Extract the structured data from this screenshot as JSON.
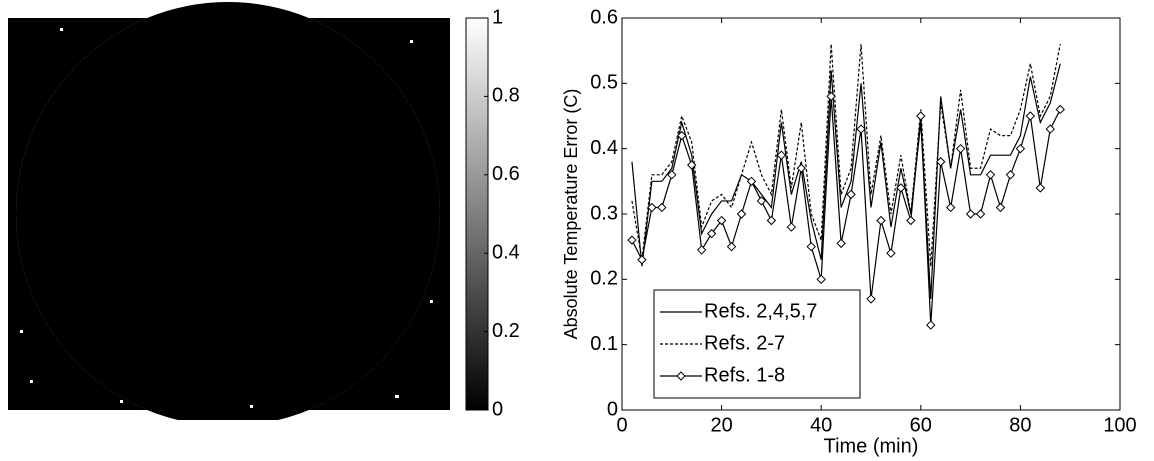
{
  "chart_data": [
    {
      "type": "image",
      "colorbar_lim": [
        0,
        1
      ],
      "colorbar_ticks": [
        0,
        0.2,
        0.4,
        0.6,
        0.8,
        1
      ]
    },
    {
      "type": "line",
      "x_label": "Time (min)",
      "y_label": "Absolute Temperature Error (C)",
      "x": [
        2,
        4,
        6,
        8,
        10,
        12,
        14,
        16,
        18,
        20,
        22,
        24,
        26,
        28,
        30,
        32,
        34,
        36,
        38,
        40,
        42,
        44,
        46,
        48,
        50,
        52,
        54,
        56,
        58,
        60,
        62,
        64,
        66,
        68,
        70,
        72,
        74,
        76,
        78,
        80,
        82,
        84,
        86,
        88
      ],
      "series": [
        {
          "name": "Refs. 2,4,5,7",
          "color": "#000000",
          "dash": false,
          "marker": false,
          "values": [
            0.38,
            0.22,
            0.35,
            0.35,
            0.37,
            0.44,
            0.39,
            0.27,
            0.3,
            0.32,
            0.32,
            0.36,
            0.35,
            0.33,
            0.31,
            0.44,
            0.33,
            0.38,
            0.29,
            0.23,
            0.52,
            0.31,
            0.35,
            0.5,
            0.31,
            0.41,
            0.28,
            0.37,
            0.3,
            0.44,
            0.17,
            0.48,
            0.37,
            0.46,
            0.36,
            0.36,
            0.39,
            0.39,
            0.39,
            0.42,
            0.51,
            0.44,
            0.47,
            0.53
          ]
        },
        {
          "name": "Refs. 2-7",
          "color": "#000000",
          "dash": true,
          "marker": false,
          "values": [
            0.32,
            0.23,
            0.36,
            0.36,
            0.38,
            0.45,
            0.41,
            0.28,
            0.32,
            0.33,
            0.31,
            0.36,
            0.41,
            0.36,
            0.33,
            0.46,
            0.34,
            0.44,
            0.3,
            0.26,
            0.56,
            0.33,
            0.37,
            0.56,
            0.33,
            0.42,
            0.3,
            0.39,
            0.3,
            0.46,
            0.22,
            0.47,
            0.37,
            0.49,
            0.37,
            0.37,
            0.43,
            0.42,
            0.42,
            0.46,
            0.53,
            0.45,
            0.48,
            0.56
          ]
        },
        {
          "name": "Refs. 1-8",
          "color": "#000000",
          "dash": false,
          "marker": true,
          "values": [
            0.26,
            0.23,
            0.31,
            0.31,
            0.36,
            0.42,
            0.375,
            0.245,
            0.27,
            0.29,
            0.25,
            0.3,
            0.35,
            0.32,
            0.29,
            0.39,
            0.28,
            0.37,
            0.25,
            0.2,
            0.48,
            0.255,
            0.33,
            0.43,
            0.17,
            0.29,
            0.24,
            0.34,
            0.29,
            0.45,
            0.13,
            0.38,
            0.31,
            0.4,
            0.3,
            0.3,
            0.36,
            0.31,
            0.36,
            0.4,
            0.45,
            0.34,
            0.43,
            0.46
          ]
        }
      ],
      "xlim": [
        0,
        100
      ],
      "xticks": [
        0,
        20,
        40,
        60,
        80,
        100
      ],
      "ylim": [
        0,
        0.6
      ],
      "yticks": [
        0,
        0.1,
        0.2,
        0.3,
        0.4,
        0.5,
        0.6
      ],
      "legend": "lower-left"
    }
  ]
}
